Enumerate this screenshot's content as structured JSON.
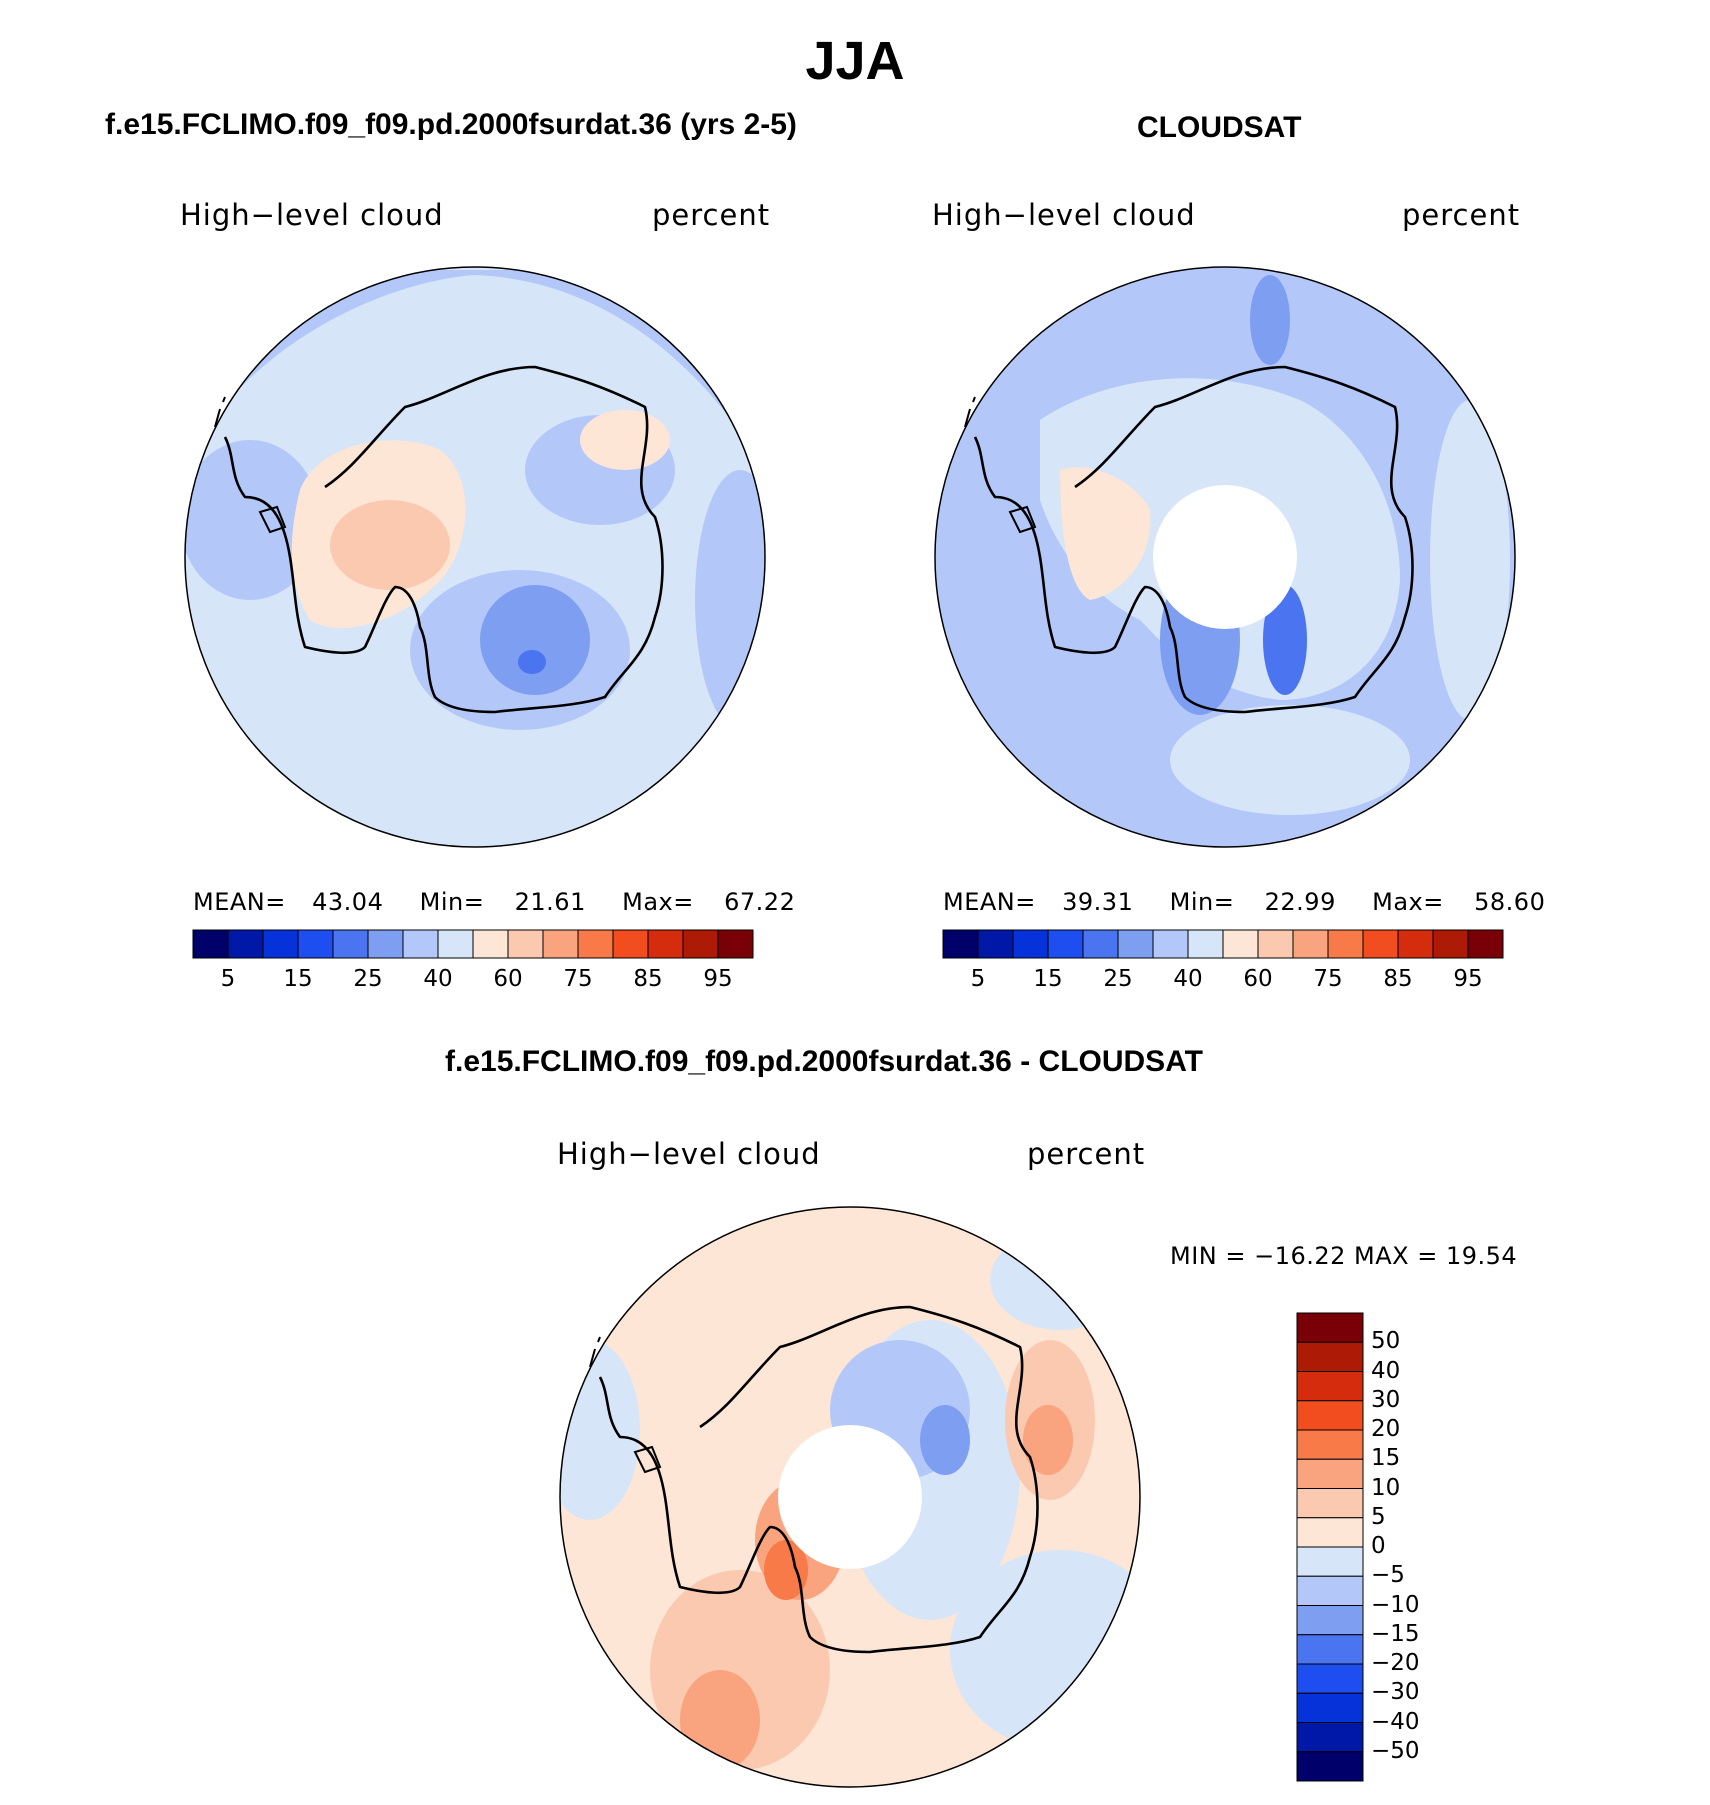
{
  "season": "JJA",
  "colors": {
    "abs_scale": [
      "#00006a",
      "#0018a8",
      "#0532d9",
      "#1e4ef0",
      "#4a74f0",
      "#7e9ef2",
      "#b3c8f8",
      "#d6e6f8",
      "#fde6d6",
      "#fbc9b0",
      "#f9a37f",
      "#f77a48",
      "#f14d1e",
      "#d42c0c",
      "#ad1a05",
      "#7a0008"
    ],
    "diff_scale": [
      "#00006a",
      "#0018a8",
      "#0532d9",
      "#1e4ef0",
      "#4a74f0",
      "#7e9ef2",
      "#b3c8f8",
      "#d6e6f8",
      "#fde6d6",
      "#fbc9b0",
      "#f9a37f",
      "#f77a48",
      "#f14d1e",
      "#d42c0c",
      "#ad1a05",
      "#7a0008"
    ],
    "coastline": "#000000"
  },
  "panels": {
    "model": {
      "title": "f.e15.FCLIMO.f09_f09.pd.2000fsurdat.36 (yrs 2-5)",
      "variable": "High−level cloud",
      "units": "percent",
      "mean_label": "MEAN=",
      "mean_value": "43.04",
      "min_label": "Min=",
      "min_value": "21.61",
      "max_label": "Max=",
      "max_value": "67.22"
    },
    "obs": {
      "title": "CLOUDSAT",
      "variable": "High−level cloud",
      "units": "percent",
      "mean_label": "MEAN=",
      "mean_value": "39.31",
      "min_label": "Min=",
      "min_value": "22.99",
      "max_label": "Max=",
      "max_value": "58.60"
    },
    "diff": {
      "title": "f.e15.FCLIMO.f09_f09.pd.2000fsurdat.36 - CLOUDSAT",
      "variable": "High−level cloud",
      "units": "percent",
      "range_text": "MIN = −16.22 MAX =   19.54"
    }
  },
  "abs_colorbar_ticks": [
    "5",
    "15",
    "25",
    "40",
    "60",
    "75",
    "85",
    "95"
  ],
  "diff_colorbar_ticks": [
    "50",
    "40",
    "30",
    "20",
    "15",
    "10",
    "5",
    "0",
    "−5",
    "−10",
    "−15",
    "−20",
    "−30",
    "−40",
    "−50"
  ]
}
